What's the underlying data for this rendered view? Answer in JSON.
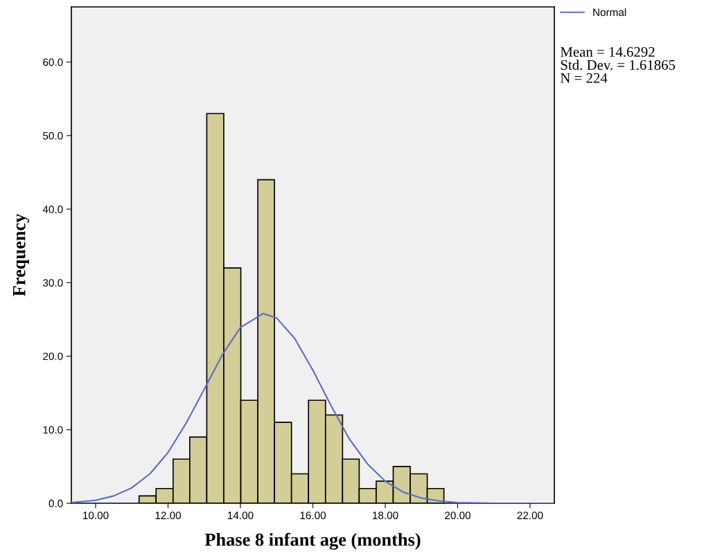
{
  "chart_data": {
    "type": "histogram",
    "xlabel": "Phase 8 infant age (months)",
    "ylabel": "Frequency",
    "bins": [
      11.2,
      11.67,
      12.14,
      12.6,
      13.07,
      13.54,
      14.01,
      14.48,
      14.94,
      15.41,
      15.88,
      16.35,
      16.82,
      17.28,
      17.75,
      18.22,
      18.69,
      19.16,
      19.62
    ],
    "values": [
      1,
      2,
      6,
      9,
      53,
      32,
      14,
      44,
      11,
      4,
      14,
      12,
      6,
      2,
      3,
      5,
      4,
      2
    ],
    "color": "#d3cd97",
    "series": [
      {
        "name": "Normal",
        "type": "line",
        "color": "#5b6cc4",
        "x": [
          9.33,
          10,
          10.5,
          11,
          11.5,
          12,
          12.5,
          13,
          13.5,
          14,
          14.63,
          15,
          15.5,
          16,
          16.5,
          17,
          17.5,
          18,
          18.5,
          19,
          19.5,
          20,
          21,
          22,
          22.67
        ],
        "values": [
          0.1,
          0.4,
          1.0,
          2.1,
          4.0,
          6.9,
          10.9,
          15.5,
          20.2,
          23.9,
          25.8,
          25.2,
          22.4,
          18.1,
          13.3,
          8.8,
          5.4,
          3.0,
          1.5,
          0.7,
          0.3,
          0.1,
          0.0,
          0.0,
          0.0
        ]
      }
    ],
    "xlim": [
      9.33,
      22.67
    ],
    "ylim": [
      0,
      67.5
    ],
    "xticks": [
      {
        "value": 10,
        "label": "10.00"
      },
      {
        "value": 12,
        "label": "12.00"
      },
      {
        "value": 14,
        "label": "14.00"
      },
      {
        "value": 16,
        "label": "16.00"
      },
      {
        "value": 18,
        "label": "18.00"
      },
      {
        "value": 20,
        "label": "20.00"
      },
      {
        "value": 22,
        "label": "22.00"
      }
    ],
    "yticks": [
      {
        "value": 0,
        "label": "0.0"
      },
      {
        "value": 10,
        "label": "10.0"
      },
      {
        "value": 20,
        "label": "20.0"
      },
      {
        "value": 30,
        "label": "30.0"
      },
      {
        "value": 40,
        "label": "40.0"
      },
      {
        "value": 50,
        "label": "50.0"
      },
      {
        "value": 60,
        "label": "60.0"
      }
    ],
    "annotations": [
      "Mean = 14.6292\nStd. Dev. = 1.61865\nN = 224"
    ],
    "legend": "top right"
  }
}
